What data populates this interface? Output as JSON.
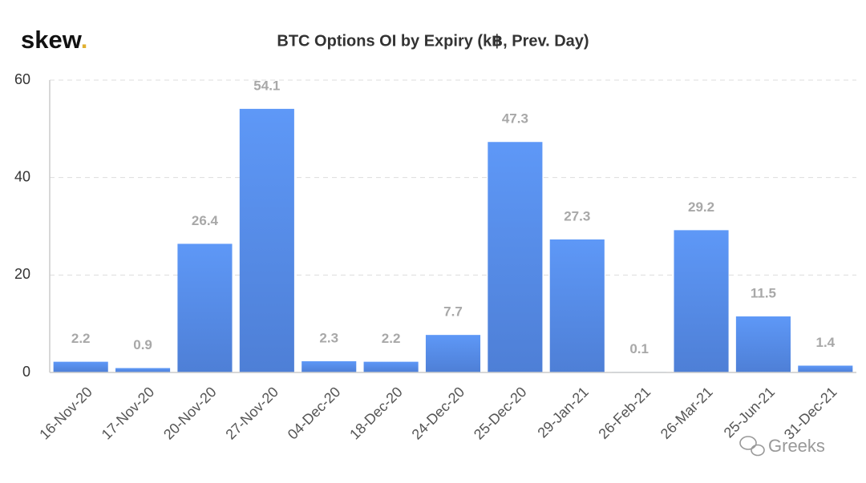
{
  "brand": {
    "name": "skew",
    "dot": "."
  },
  "watermark": "Greeks",
  "chart_data": {
    "type": "bar",
    "title": "BTC Options OI by Expiry (k฿, Prev. Day)",
    "categories": [
      "16-Nov-20",
      "17-Nov-20",
      "20-Nov-20",
      "27-Nov-20",
      "04-Dec-20",
      "18-Dec-20",
      "24-Dec-20",
      "25-Dec-20",
      "29-Jan-21",
      "26-Feb-21",
      "26-Mar-21",
      "25-Jun-21",
      "31-Dec-21"
    ],
    "values": [
      2.2,
      0.9,
      26.4,
      54.1,
      2.3,
      2.2,
      7.7,
      47.3,
      27.3,
      0.1,
      29.2,
      11.5,
      1.4
    ],
    "color": "#5890ee",
    "ylim": [
      0,
      60
    ],
    "yticks": [
      0,
      20,
      40,
      60
    ],
    "grid": true
  }
}
